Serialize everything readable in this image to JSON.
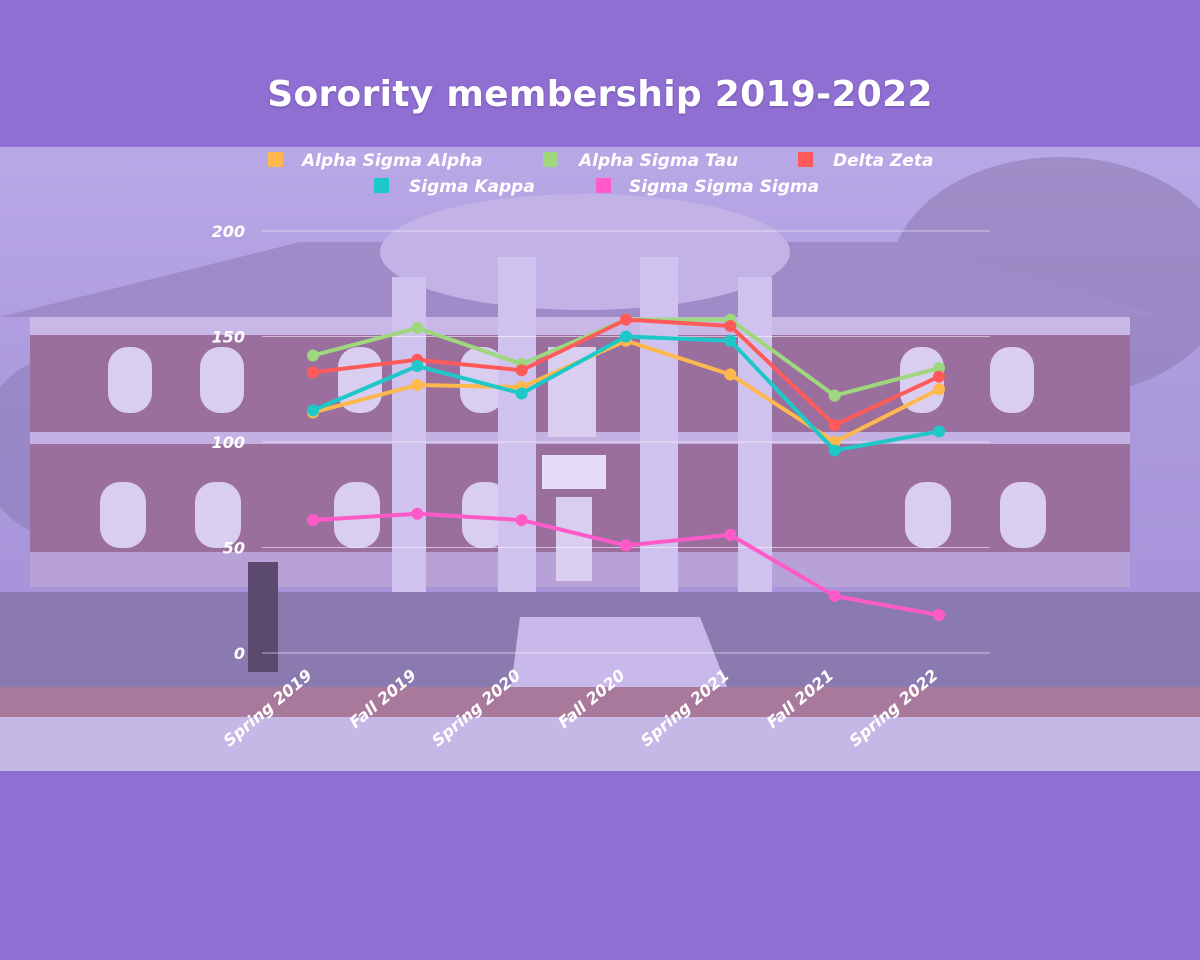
{
  "chart_data": {
    "type": "line",
    "title": "Sorority membership 2019-2022",
    "xlabel": "",
    "ylabel": "",
    "categories": [
      "Spring 2019",
      "Fall 2019",
      "Spring 2020",
      "Fall 2020",
      "Spring 2021",
      "Fall 2021",
      "Spring 2022"
    ],
    "ylim": [
      0,
      200
    ],
    "yticks": [
      0,
      50,
      100,
      150,
      200
    ],
    "grid": true,
    "legend_position": "top",
    "series": [
      {
        "name": "Alpha Sigma Alpha",
        "color": "#ffb84d",
        "values": [
          114,
          127,
          126,
          148,
          132,
          100,
          125
        ]
      },
      {
        "name": "Alpha Sigma Tau",
        "color": "#9ed77e",
        "values": [
          141,
          154,
          137,
          158,
          158,
          122,
          135
        ]
      },
      {
        "name": "Delta Zeta",
        "color": "#ff5a5a",
        "values": [
          133,
          139,
          134,
          158,
          155,
          108,
          131
        ]
      },
      {
        "name": "Sigma Kappa",
        "color": "#1ec8c8",
        "values": [
          115,
          136,
          123,
          150,
          148,
          96,
          105
        ]
      },
      {
        "name": "Sigma Sigma Sigma",
        "color": "#ff5ac8",
        "values": [
          63,
          66,
          63,
          51,
          56,
          27,
          18
        ]
      }
    ]
  }
}
